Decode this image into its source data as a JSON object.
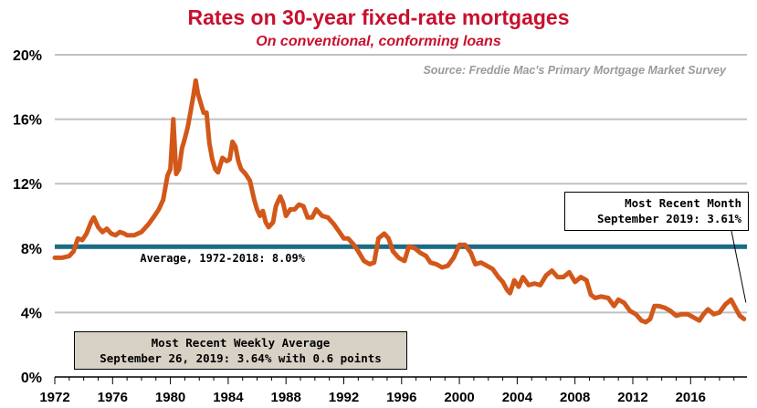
{
  "chart_data": {
    "type": "line",
    "title": "Rates on 30-year fixed-rate mortgages",
    "subtitle": "On conventional,  conforming loans",
    "source": "Source: Freddie Mac's Primary Mortgage Market Survey",
    "xlim": [
      1972,
      2019.9
    ],
    "ylim": [
      0,
      20
    ],
    "ytick_values": [
      0,
      4,
      8,
      12,
      16,
      20
    ],
    "yticks": [
      "0%",
      "4%",
      "8%",
      "12%",
      "16%",
      "20%"
    ],
    "xtick_values": [
      1972,
      1976,
      1980,
      1984,
      1988,
      1992,
      1996,
      2000,
      2004,
      2008,
      2012,
      2016
    ],
    "xticks": [
      "1972",
      "1976",
      "1980",
      "1984",
      "1988",
      "1992",
      "1996",
      "2000",
      "2004",
      "2008",
      "2012",
      "2016"
    ],
    "grid": true,
    "series": [
      {
        "color": "#d2581a",
        "x": [
          1972.0,
          1972.5,
          1973.0,
          1973.3,
          1973.6,
          1973.9,
          1974.2,
          1974.5,
          1974.7,
          1975.0,
          1975.3,
          1975.6,
          1975.9,
          1976.2,
          1976.5,
          1976.8,
          1977.0,
          1977.5,
          1978.0,
          1978.5,
          1978.9,
          1979.2,
          1979.5,
          1979.8,
          1980.0,
          1980.2,
          1980.4,
          1980.6,
          1980.8,
          1981.0,
          1981.2,
          1981.4,
          1981.6,
          1981.75,
          1981.9,
          1982.1,
          1982.3,
          1982.5,
          1982.7,
          1982.9,
          1983.1,
          1983.3,
          1983.6,
          1983.9,
          1984.1,
          1984.3,
          1984.5,
          1984.7,
          1984.9,
          1985.2,
          1985.5,
          1985.8,
          1986.0,
          1986.2,
          1986.4,
          1986.6,
          1986.8,
          1987.1,
          1987.3,
          1987.6,
          1987.8,
          1988.0,
          1988.3,
          1988.6,
          1988.9,
          1989.2,
          1989.5,
          1989.8,
          1990.1,
          1990.5,
          1990.9,
          1991.3,
          1991.7,
          1992.0,
          1992.3,
          1992.7,
          1993.0,
          1993.4,
          1993.8,
          1994.1,
          1994.4,
          1994.8,
          1995.1,
          1995.4,
          1995.8,
          1996.2,
          1996.5,
          1996.9,
          1997.3,
          1997.7,
          1998.0,
          1998.4,
          1998.8,
          1999.2,
          1999.6,
          2000.0,
          2000.4,
          2000.8,
          2001.1,
          2001.5,
          2001.9,
          2002.3,
          2002.7,
          2003.0,
          2003.3,
          2003.5,
          2003.8,
          2004.1,
          2004.4,
          2004.8,
          2005.2,
          2005.6,
          2006.0,
          2006.4,
          2006.8,
          2007.2,
          2007.6,
          2008.0,
          2008.4,
          2008.8,
          2009.1,
          2009.4,
          2009.8,
          2010.3,
          2010.7,
          2011.0,
          2011.4,
          2011.8,
          2012.2,
          2012.6,
          2012.9,
          2013.2,
          2013.5,
          2013.8,
          2014.2,
          2014.6,
          2015.0,
          2015.4,
          2015.8,
          2016.2,
          2016.6,
          2016.9,
          2017.2,
          2017.6,
          2018.0,
          2018.4,
          2018.8,
          2019.1,
          2019.4,
          2019.7
        ],
        "values": [
          7.4,
          7.4,
          7.5,
          7.8,
          8.6,
          8.5,
          8.9,
          9.6,
          9.9,
          9.3,
          9.0,
          9.2,
          8.9,
          8.8,
          9.0,
          8.9,
          8.8,
          8.8,
          9.0,
          9.5,
          10.0,
          10.4,
          11.0,
          12.5,
          12.9,
          16.0,
          12.6,
          12.9,
          14.2,
          14.8,
          15.5,
          16.5,
          17.5,
          18.4,
          17.6,
          17.0,
          16.4,
          16.4,
          14.5,
          13.5,
          12.9,
          12.7,
          13.6,
          13.4,
          13.5,
          14.6,
          14.3,
          13.4,
          12.9,
          12.6,
          12.2,
          11.0,
          10.4,
          10.0,
          10.3,
          9.6,
          9.3,
          9.6,
          10.6,
          11.2,
          10.8,
          10.0,
          10.4,
          10.4,
          10.7,
          10.6,
          9.9,
          9.9,
          10.4,
          10.0,
          9.9,
          9.5,
          9.0,
          8.6,
          8.6,
          8.2,
          7.8,
          7.2,
          7.0,
          7.1,
          8.6,
          8.9,
          8.6,
          7.8,
          7.4,
          7.2,
          8.1,
          8.0,
          7.7,
          7.5,
          7.1,
          7.0,
          6.8,
          6.9,
          7.4,
          8.2,
          8.2,
          7.7,
          7.0,
          7.1,
          6.9,
          6.7,
          6.2,
          5.9,
          5.4,
          5.2,
          6.0,
          5.6,
          6.2,
          5.7,
          5.8,
          5.7,
          6.3,
          6.6,
          6.2,
          6.2,
          6.5,
          5.9,
          6.2,
          6.0,
          5.1,
          4.9,
          5.0,
          4.9,
          4.4,
          4.8,
          4.6,
          4.1,
          3.9,
          3.5,
          3.4,
          3.6,
          4.4,
          4.4,
          4.3,
          4.1,
          3.8,
          3.9,
          3.9,
          3.7,
          3.5,
          3.9,
          4.2,
          3.9,
          4.0,
          4.5,
          4.8,
          4.3,
          3.8,
          3.6
        ]
      }
    ],
    "reference_line": {
      "value": 8.09,
      "color": "#1c6b85",
      "label": "Average, 1972-2018: 8.09%"
    }
  },
  "annotations": {
    "month_line1": "Most Recent Month",
    "month_line2": "September 2019: 3.61%",
    "week_line1": "Most Recent Weekly Average",
    "week_line2": "September 26, 2019: 3.64% with 0.6 points"
  }
}
